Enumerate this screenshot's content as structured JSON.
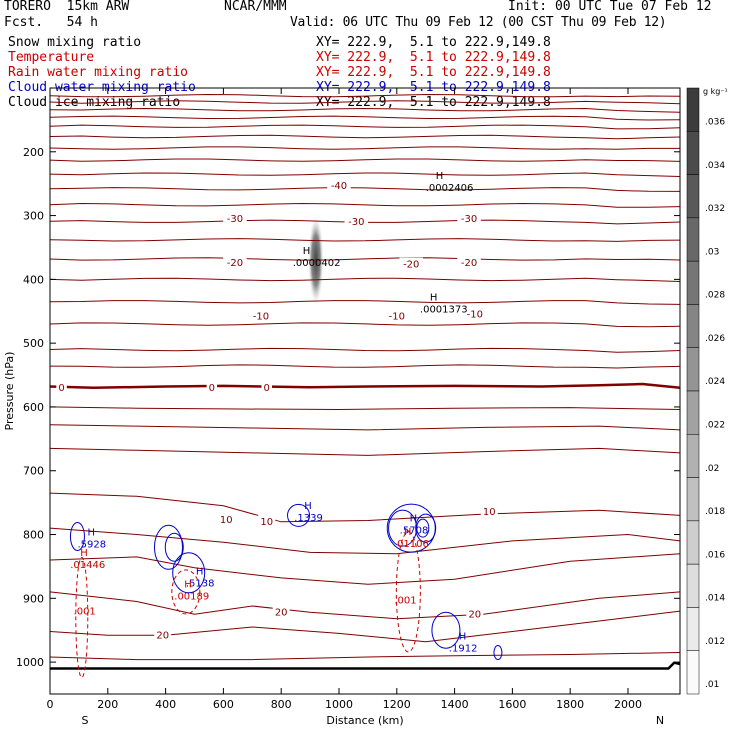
{
  "header": {
    "model": "TORERO  15km ARW",
    "forecast": "Fcst.   54 h",
    "source": "NCAR/MMM",
    "init": "Init: 00 UTC Tue 07 Feb 12",
    "valid": "Valid: 06 UTC Thu 09 Feb 12 (00 CST Thu 09 Feb 12)"
  },
  "fields": [
    {
      "name": "Snow mixing ratio",
      "xy": "XY= 222.9,  5.1 to 222.9,149.8",
      "color": "#000000"
    },
    {
      "name": "Temperature",
      "xy": "XY= 222.9,  5.1 to 222.9,149.8",
      "color": "#cc0000"
    },
    {
      "name": "Rain water mixing ratio",
      "xy": "XY= 222.9,  5.1 to 222.9,149.8",
      "color": "#cc0000"
    },
    {
      "name": "Cloud water mixing ratio",
      "xy": "XY= 222.9,  5.1 to 222.9,149.8",
      "color": "#0000cc"
    },
    {
      "name": "Cloud ice mixing ratio",
      "xy": "XY= 222.9,  5.1 to 222.9,149.8",
      "color": "#000000"
    }
  ],
  "chart_data": {
    "type": "contour",
    "xlabel": "Distance (km)",
    "ylabel": "Pressure (hPa)",
    "xlim": [
      0,
      2180
    ],
    "ylim": [
      1050,
      100
    ],
    "x_ticks": [
      0,
      200,
      400,
      600,
      800,
      1000,
      1200,
      1400,
      1600,
      1800,
      2000
    ],
    "y_ticks": [
      200,
      300,
      400,
      500,
      600,
      700,
      800,
      900,
      1000
    ],
    "side_labels": {
      "left": "S",
      "right": "N"
    },
    "colorbar": {
      "unit": "g kg⁻¹",
      "ticks": [
        ".036",
        ".034",
        ".032",
        ".03",
        ".028",
        ".026",
        ".024",
        ".022",
        ".02",
        ".018",
        ".016",
        ".014",
        ".012",
        ".01"
      ]
    },
    "isotherm_labels": [
      {
        "text": "-40",
        "x": 1000,
        "p": 254
      },
      {
        "text": "-30",
        "x": 640,
        "p": 305
      },
      {
        "text": "-30",
        "x": 1060,
        "p": 310
      },
      {
        "text": "-30",
        "x": 1450,
        "p": 305
      },
      {
        "text": "-20",
        "x": 640,
        "p": 374
      },
      {
        "text": "-20",
        "x": 1250,
        "p": 377
      },
      {
        "text": "-20",
        "x": 1450,
        "p": 374
      },
      {
        "text": "-10",
        "x": 730,
        "p": 458
      },
      {
        "text": "-10",
        "x": 1200,
        "p": 458
      },
      {
        "text": "-10",
        "x": 1470,
        "p": 455
      },
      {
        "text": "0",
        "x": 40,
        "p": 570
      },
      {
        "text": "0",
        "x": 560,
        "p": 570
      },
      {
        "text": "0",
        "x": 750,
        "p": 570
      },
      {
        "text": "10",
        "x": 610,
        "p": 777
      },
      {
        "text": "10",
        "x": 750,
        "p": 780
      },
      {
        "text": "10",
        "x": 1520,
        "p": 765
      },
      {
        "text": "20",
        "x": 390,
        "p": 958
      },
      {
        "text": "20",
        "x": 800,
        "p": 922
      },
      {
        "text": "20",
        "x": 1470,
        "p": 925
      }
    ],
    "maxima": [
      {
        "mark": "H",
        "value": ".0002406",
        "x": 1300,
        "p": 246,
        "color": "#000000"
      },
      {
        "mark": "H",
        "value": ".0000402",
        "x": 840,
        "p": 363,
        "color": "#000000"
      },
      {
        "mark": "H",
        "value": ".0001373",
        "x": 1280,
        "p": 436,
        "color": "#000000"
      },
      {
        "mark": "H",
        "value": ".1339",
        "x": 845,
        "p": 763,
        "color": "#0000cc"
      },
      {
        "mark": "H",
        "value": ".5928",
        "x": 95,
        "p": 805,
        "color": "#0000cc"
      },
      {
        "mark": "H",
        "value": ".01446",
        "x": 70,
        "p": 837,
        "color": "#cc0000"
      },
      {
        "mark": "H",
        "value": ".5138",
        "x": 470,
        "p": 866,
        "color": "#0000cc"
      },
      {
        "mark": "H",
        "value": ".00189",
        "x": 430,
        "p": 886,
        "color": "#cc0000"
      },
      {
        "mark": "H",
        "value": ".5708",
        "x": 1210,
        "p": 783,
        "color": "#0000cc"
      },
      {
        "mark": "H",
        "value": ".01106",
        "x": 1190,
        "p": 804,
        "color": "#cc0000"
      },
      {
        "mark": "H",
        "value": ".1912",
        "x": 1380,
        "p": 968,
        "color": "#0000cc"
      }
    ],
    "rain_labels": [
      {
        "text": ".001",
        "x": 120,
        "p": 925
      },
      {
        "text": ".001",
        "x": 1230,
        "p": 908
      }
    ]
  }
}
